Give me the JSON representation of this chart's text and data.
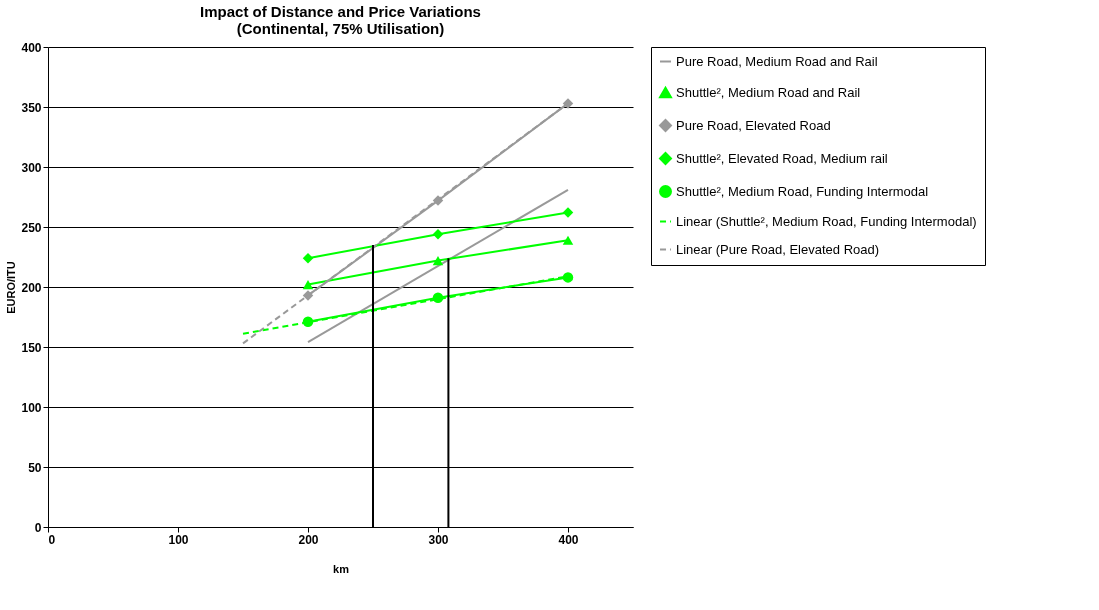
{
  "chart_data": {
    "type": "line",
    "title": [
      "Impact of Distance and Price Variations",
      "(Continental, 75% Utilisation)"
    ],
    "xlabel": "km",
    "ylabel": "EURO/ITU",
    "x": [
      200,
      300,
      400
    ],
    "series": [
      {
        "name": "Pure Road, Medium Road and Rail",
        "color": "#999999",
        "marker": "none",
        "line_style": "solid",
        "values": [
          154,
          null,
          281
        ]
      },
      {
        "name": "Shuttle², Medium Road and Rail",
        "color": "#00ff00",
        "marker": "triangle",
        "line_style": "solid",
        "values": [
          202,
          222,
          239
        ]
      },
      {
        "name": "Pure Road, Elevated Road",
        "color": "#999999",
        "marker": "diamond",
        "line_style": "solid",
        "values": [
          193,
          272,
          353
        ]
      },
      {
        "name": "Shuttle², Elevated Road, Medium rail",
        "color": "#00ff00",
        "marker": "diamond",
        "line_style": "solid",
        "values": [
          224,
          244,
          262
        ]
      },
      {
        "name": "Shuttle², Medium Road, Funding Intermodal",
        "color": "#00ff00",
        "marker": "circle",
        "line_style": "solid",
        "values": [
          171,
          191,
          208
        ]
      },
      {
        "name": "Linear (Shuttle², Medium Road, Funding Intermodal)",
        "color": "#00ff00",
        "marker": "none",
        "line_style": "dashed",
        "x": [
          150,
          400
        ],
        "values": [
          161,
          209
        ]
      },
      {
        "name": "Linear (Pure Road, Elevated Road)",
        "color": "#999999",
        "marker": "none",
        "line_style": "dashed",
        "x": [
          150,
          400
        ],
        "values": [
          153,
          353
        ]
      },
      {
        "color": "#000000",
        "marker": "none",
        "line_style": "solid",
        "x": [
          250,
          250
        ],
        "values": [
          0,
          235
        ]
      },
      {
        "color": "#000000",
        "marker": "none",
        "line_style": "solid",
        "x": [
          308,
          308
        ],
        "values": [
          0,
          224
        ]
      }
    ],
    "xlim": [
      0,
      450
    ],
    "xticks": [
      0,
      100,
      200,
      300,
      400
    ],
    "ylim": [
      0,
      400
    ],
    "yticks": [
      0,
      50,
      100,
      150,
      200,
      250,
      300,
      350,
      400
    ],
    "grid": "y",
    "legend": "right"
  }
}
